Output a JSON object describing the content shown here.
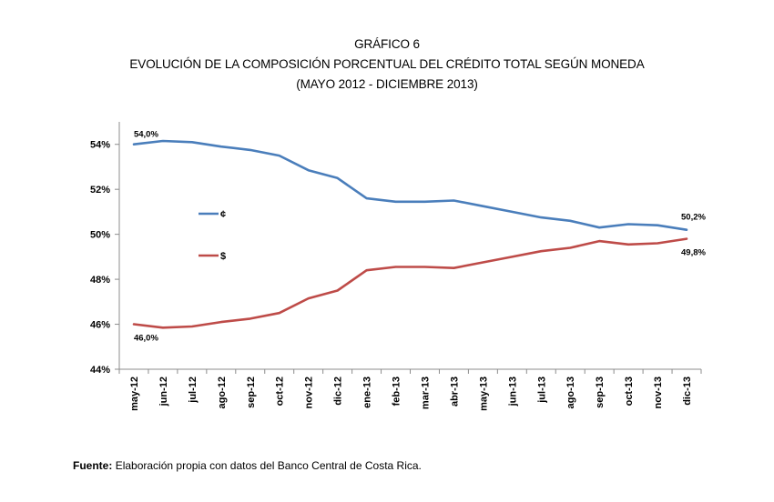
{
  "header": {
    "line1": "GRÁFICO 6",
    "line2": "EVOLUCIÓN DE LA COMPOSICIÓN PORCENTUAL DEL CRÉDITO TOTAL SEGÚN MONEDA",
    "line3": "(MAYO 2012 - DICIEMBRE 2013)"
  },
  "chart_data": {
    "type": "line",
    "title": "GRÁFICO 6",
    "categories": [
      "may-12",
      "jun-12",
      "jul-12",
      "ago-12",
      "sep-12",
      "oct-12",
      "nov-12",
      "dic-12",
      "ene-13",
      "feb-13",
      "mar-13",
      "abr-13",
      "may-13",
      "jun-13",
      "jul-13",
      "ago-13",
      "sep-13",
      "oct-13",
      "nov-13",
      "dic-13"
    ],
    "y_ticks": [
      "44%",
      "46%",
      "48%",
      "50%",
      "52%",
      "54%"
    ],
    "ylim": [
      44,
      55
    ],
    "series": [
      {
        "name": "¢",
        "color": "#4a7ebb",
        "values": [
          54.0,
          54.15,
          54.1,
          53.9,
          53.75,
          53.5,
          52.85,
          52.5,
          51.6,
          51.45,
          51.45,
          51.5,
          51.25,
          51.0,
          50.75,
          50.6,
          50.3,
          50.45,
          50.4,
          50.2
        ]
      },
      {
        "name": "$",
        "color": "#be4b48",
        "values": [
          46.0,
          45.85,
          45.9,
          46.1,
          46.25,
          46.5,
          47.15,
          47.5,
          48.4,
          48.55,
          48.55,
          48.5,
          48.75,
          49.0,
          49.25,
          49.4,
          49.7,
          49.55,
          49.6,
          49.8
        ]
      }
    ],
    "annotations": [
      {
        "text": "54,0%",
        "series": 0,
        "index": 0
      },
      {
        "text": "46,0%",
        "series": 1,
        "index": 0
      },
      {
        "text": "50,2%",
        "series": 0,
        "index": 19
      },
      {
        "text": "49,8%",
        "series": 1,
        "index": 19
      }
    ],
    "grid": false,
    "legend_position": "left-inside"
  },
  "source": {
    "label": "Fuente:",
    "text": "Elaboración propia con datos del Banco Central de Costa Rica."
  }
}
